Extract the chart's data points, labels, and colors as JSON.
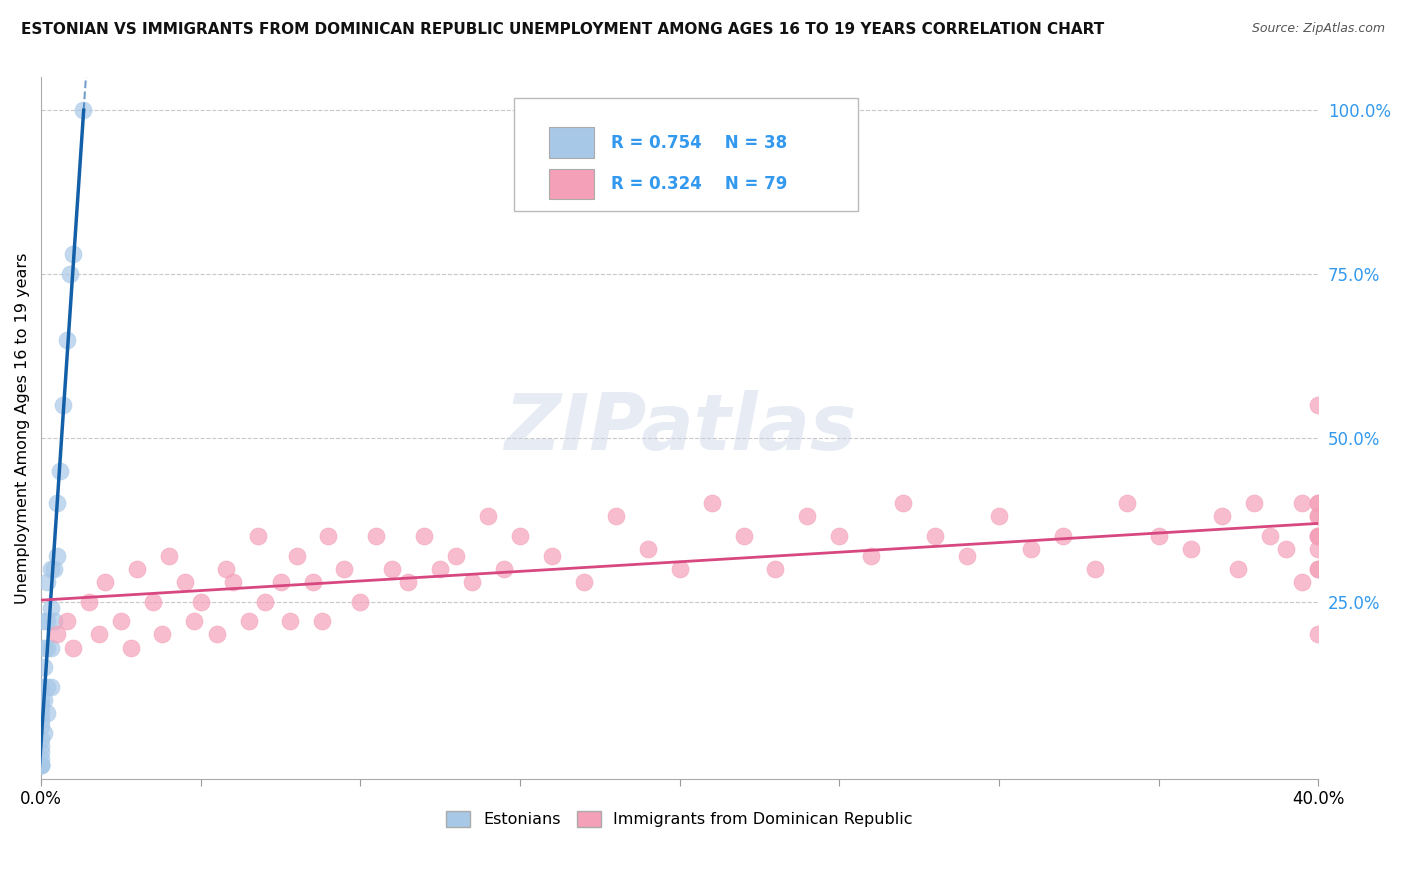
{
  "title": "ESTONIAN VS IMMIGRANTS FROM DOMINICAN REPUBLIC UNEMPLOYMENT AMONG AGES 16 TO 19 YEARS CORRELATION CHART",
  "source": "Source: ZipAtlas.com",
  "ylabel": "Unemployment Among Ages 16 to 19 years",
  "xlim": [
    0.0,
    0.4
  ],
  "ylim": [
    -0.02,
    1.05
  ],
  "xtick_labels": [
    "0.0%",
    "",
    "",
    "",
    "",
    "",
    "",
    "",
    "40.0%"
  ],
  "xtick_vals": [
    0.0,
    0.05,
    0.1,
    0.15,
    0.2,
    0.25,
    0.3,
    0.35,
    0.4
  ],
  "ytick_labels_right": [
    "25.0%",
    "50.0%",
    "75.0%",
    "100.0%"
  ],
  "ytick_vals_right": [
    0.25,
    0.5,
    0.75,
    1.0
  ],
  "grid_color": "#c8c8c8",
  "background_color": "#ffffff",
  "blue_color": "#a8c8e8",
  "pink_color": "#f4a0b8",
  "blue_line_color": "#1460a8",
  "pink_line_color": "#d84880",
  "legend_blue_r": "R = 0.754",
  "legend_blue_n": "N = 38",
  "legend_pink_r": "R = 0.324",
  "legend_pink_n": "N = 79",
  "watermark": "ZIPatlas",
  "blue_scatter_x": [
    0.0,
    0.0,
    0.0,
    0.0,
    0.0,
    0.0,
    0.0,
    0.0,
    0.0,
    0.0,
    0.0,
    0.0,
    0.0,
    0.0,
    0.001,
    0.001,
    0.001,
    0.001,
    0.001,
    0.002,
    0.002,
    0.002,
    0.002,
    0.002,
    0.003,
    0.003,
    0.003,
    0.003,
    0.004,
    0.004,
    0.005,
    0.005,
    0.006,
    0.007,
    0.008,
    0.009,
    0.01,
    0.013
  ],
  "blue_scatter_y": [
    0.0,
    0.0,
    0.0,
    0.0,
    0.01,
    0.02,
    0.03,
    0.04,
    0.06,
    0.07,
    0.08,
    0.09,
    0.1,
    0.12,
    0.05,
    0.1,
    0.15,
    0.18,
    0.22,
    0.08,
    0.12,
    0.18,
    0.22,
    0.28,
    0.12,
    0.18,
    0.24,
    0.3,
    0.22,
    0.3,
    0.32,
    0.4,
    0.45,
    0.55,
    0.65,
    0.75,
    0.78,
    1.0
  ],
  "pink_scatter_x": [
    0.005,
    0.008,
    0.01,
    0.015,
    0.018,
    0.02,
    0.025,
    0.028,
    0.03,
    0.035,
    0.038,
    0.04,
    0.045,
    0.048,
    0.05,
    0.055,
    0.058,
    0.06,
    0.065,
    0.068,
    0.07,
    0.075,
    0.078,
    0.08,
    0.085,
    0.088,
    0.09,
    0.095,
    0.1,
    0.105,
    0.11,
    0.115,
    0.12,
    0.125,
    0.13,
    0.135,
    0.14,
    0.145,
    0.15,
    0.16,
    0.17,
    0.18,
    0.19,
    0.2,
    0.21,
    0.22,
    0.23,
    0.24,
    0.25,
    0.26,
    0.27,
    0.28,
    0.29,
    0.3,
    0.31,
    0.32,
    0.33,
    0.34,
    0.35,
    0.36,
    0.37,
    0.375,
    0.38,
    0.385,
    0.39,
    0.395,
    0.395,
    0.4,
    0.4,
    0.4,
    0.4,
    0.4,
    0.4,
    0.4,
    0.4,
    0.4,
    0.4,
    0.4,
    0.4
  ],
  "pink_scatter_y": [
    0.2,
    0.22,
    0.18,
    0.25,
    0.2,
    0.28,
    0.22,
    0.18,
    0.3,
    0.25,
    0.2,
    0.32,
    0.28,
    0.22,
    0.25,
    0.2,
    0.3,
    0.28,
    0.22,
    0.35,
    0.25,
    0.28,
    0.22,
    0.32,
    0.28,
    0.22,
    0.35,
    0.3,
    0.25,
    0.35,
    0.3,
    0.28,
    0.35,
    0.3,
    0.32,
    0.28,
    0.38,
    0.3,
    0.35,
    0.32,
    0.28,
    0.38,
    0.33,
    0.3,
    0.4,
    0.35,
    0.3,
    0.38,
    0.35,
    0.32,
    0.4,
    0.35,
    0.32,
    0.38,
    0.33,
    0.35,
    0.3,
    0.4,
    0.35,
    0.33,
    0.38,
    0.3,
    0.4,
    0.35,
    0.33,
    0.28,
    0.4,
    0.3,
    0.35,
    0.4,
    0.2,
    0.38,
    0.55,
    0.33,
    0.35,
    0.38,
    0.3,
    0.35,
    0.4
  ]
}
